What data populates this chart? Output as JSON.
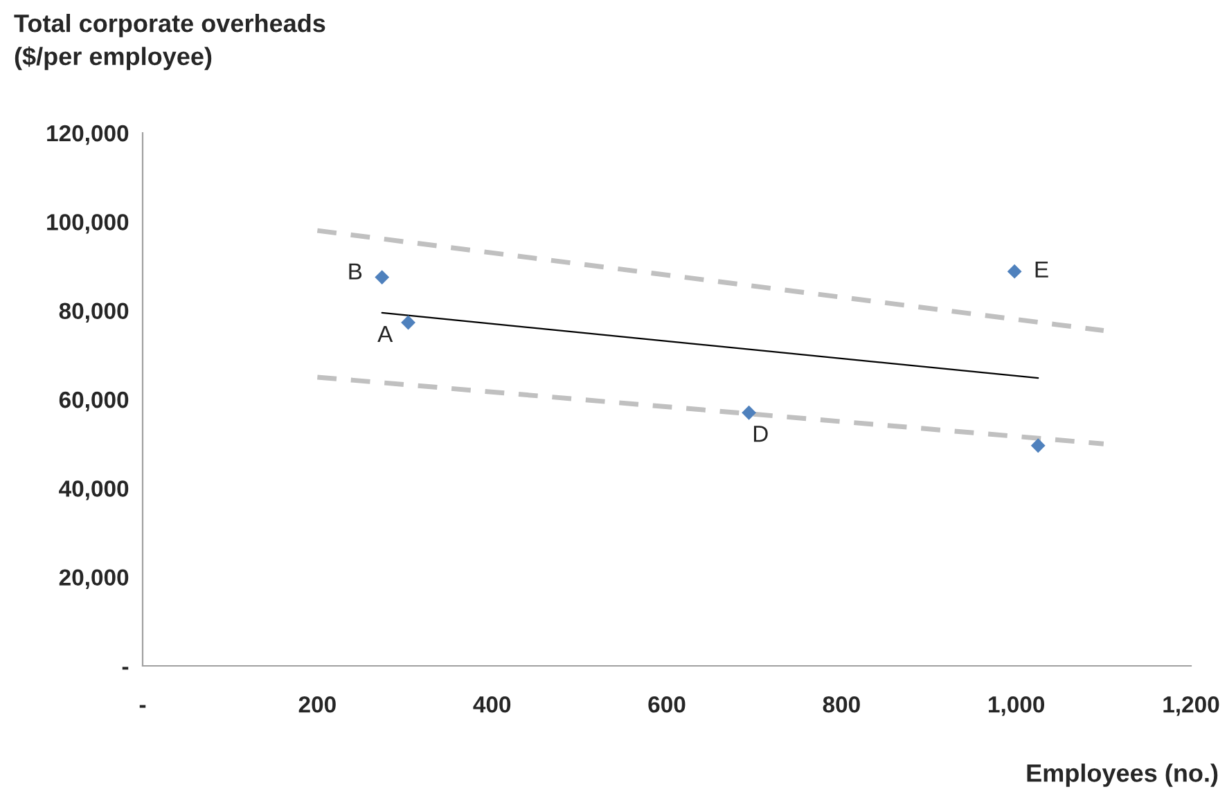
{
  "chart_data": {
    "type": "scatter",
    "ylabel": "Total corporate overheads\n($/per employee)",
    "xlabel": "Employees (no.)",
    "xlim": [
      0,
      1200
    ],
    "ylim": [
      0,
      120000
    ],
    "xticks": [
      {
        "value": 0,
        "label": "-"
      },
      {
        "value": 200,
        "label": "200"
      },
      {
        "value": 400,
        "label": "400"
      },
      {
        "value": 600,
        "label": "600"
      },
      {
        "value": 800,
        "label": "800"
      },
      {
        "value": 1000,
        "label": "1,000"
      },
      {
        "value": 1200,
        "label": "1,200"
      }
    ],
    "yticks": [
      {
        "value": 0,
        "label": "-"
      },
      {
        "value": 20000,
        "label": "20,000"
      },
      {
        "value": 40000,
        "label": "40,000"
      },
      {
        "value": 60000,
        "label": "60,000"
      },
      {
        "value": 80000,
        "label": "80,000"
      },
      {
        "value": 100000,
        "label": "100,000"
      },
      {
        "value": 120000,
        "label": "120,000"
      }
    ],
    "grid": false,
    "legend": false,
    "series": [
      {
        "color": "#4f81bd",
        "marker": "diamond",
        "x": [
          274,
          304,
          694,
          998,
          1025
        ],
        "values": [
          87500,
          77300,
          57000,
          88800,
          49600
        ]
      },
      {
        "type": "line",
        "color": "#000000",
        "line_style": "solid",
        "marker": "none",
        "x": [
          274,
          1025
        ],
        "values": [
          79500,
          64800
        ]
      },
      {
        "type": "line",
        "color": "#c0c0c0",
        "line_style": "dashed",
        "marker": "none",
        "x": [
          200,
          1100
        ],
        "values": [
          98000,
          75500
        ]
      },
      {
        "type": "line",
        "color": "#c0c0c0",
        "line_style": "dashed",
        "marker": "none",
        "x": [
          200,
          1100
        ],
        "values": [
          65000,
          50000
        ]
      }
    ],
    "annotations": [
      {
        "text": "B",
        "x": 274,
        "y": 87500
      },
      {
        "text": "A",
        "x": 304,
        "y": 77300
      },
      {
        "text": "D",
        "x": 694,
        "y": 57000
      },
      {
        "text": "E",
        "x": 998,
        "y": 88800
      }
    ]
  }
}
